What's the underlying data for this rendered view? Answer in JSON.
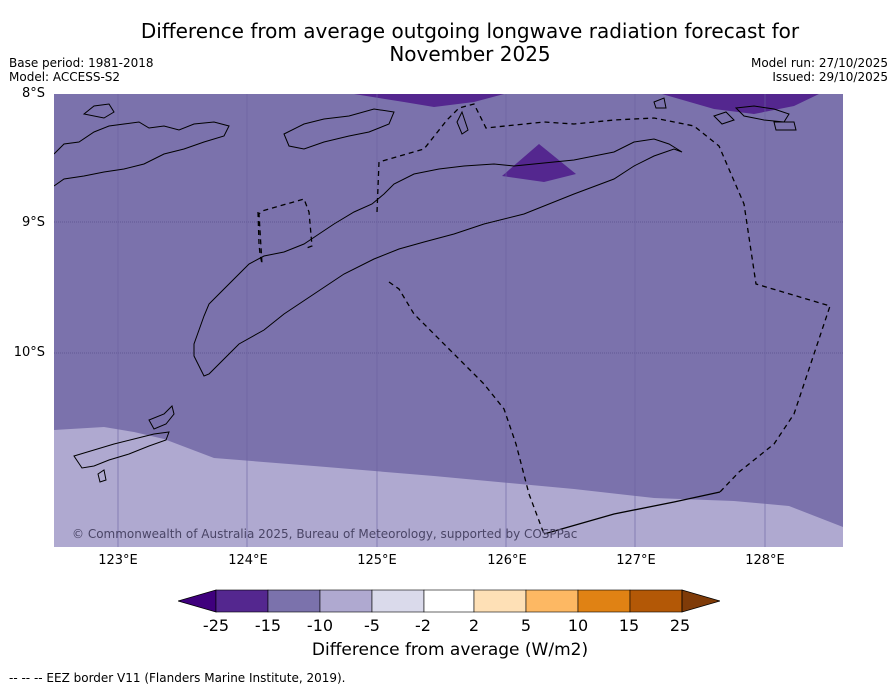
{
  "header": {
    "title_line1": "Difference from average outgoing longwave radiation forecast for",
    "title_line2": "November 2025",
    "base_period": "Base period: 1981-2018",
    "model": "Model: ACCESS-S2",
    "model_run": "Model run: 27/10/2025",
    "issued": "Issued: 29/10/2025"
  },
  "map": {
    "lat_labels": [
      "8°S",
      "9°S",
      "10°S"
    ],
    "lon_labels": [
      "123°E",
      "124°E",
      "125°E",
      "126°E",
      "127°E",
      "128°E"
    ],
    "copyright": "© Commonwealth of Australia 2025, Bureau of Meteorology, supported by COSPPac",
    "colors": {
      "bin_-15_-10": "#7b72ac",
      "bin_-10_-5": "#afa9d0",
      "bin_-25_-15": "#54278f",
      "coast": "#000000"
    }
  },
  "colorbar": {
    "ticks": [
      "-25",
      "-15",
      "-10",
      "-5",
      "-2",
      "2",
      "5",
      "10",
      "15",
      "25"
    ],
    "colors": [
      "#3f007d",
      "#54278f",
      "#7b72ac",
      "#afa9d0",
      "#dadaeb",
      "#ffffff",
      "#fee0b6",
      "#fdb863",
      "#e08214",
      "#b35806",
      "#7f3b08"
    ],
    "label": "Difference from average (W/m2)"
  },
  "footnote": "--  --  -- EEZ border V11 (Flanders Marine Institute, 2019)."
}
